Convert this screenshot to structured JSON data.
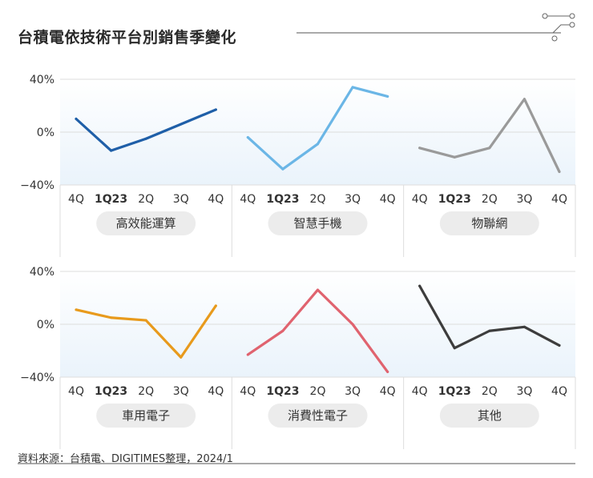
{
  "header": {
    "title": "台積電依技術平台別銷售季變化"
  },
  "footer": {
    "source": "資料來源：台積電、DIGITIMES整理，2024/1"
  },
  "colors": {
    "hpc": "#1f5fa8",
    "smartphone": "#6bb6e6",
    "iot": "#9a9a9a",
    "automotive": "#e89a1c",
    "consumer": "#e0636f",
    "others": "#3d3d3d",
    "pill": "#ececec",
    "grid": "#dddddd",
    "band": "#eaf3fb"
  },
  "chart_data": {
    "type": "line",
    "title": "台積電依技術平台別銷售季變化",
    "y_tick_labels": [
      "40%",
      "0%",
      "−40%"
    ],
    "ylim": [
      -40,
      40
    ],
    "categories": [
      "4Q",
      "1Q23",
      "2Q",
      "3Q",
      "4Q"
    ],
    "rows": [
      [
        {
          "name": "高效能運算",
          "color_key": "hpc",
          "values": [
            10,
            -14,
            -5,
            6,
            17
          ]
        },
        {
          "name": "智慧手機",
          "color_key": "smartphone",
          "values": [
            -4,
            -28,
            -9,
            34,
            27
          ]
        },
        {
          "name": "物聯網",
          "color_key": "iot",
          "values": [
            -12,
            -19,
            -12,
            25,
            -30
          ]
        }
      ],
      [
        {
          "name": "車用電子",
          "color_key": "automotive",
          "values": [
            11,
            5,
            3,
            -25,
            14
          ]
        },
        {
          "name": "消費性電子",
          "color_key": "consumer",
          "values": [
            -23,
            -5,
            26,
            0,
            -36
          ]
        },
        {
          "name": "其他",
          "color_key": "others",
          "values": [
            29,
            -18,
            -5,
            -2,
            -16
          ]
        }
      ]
    ]
  }
}
